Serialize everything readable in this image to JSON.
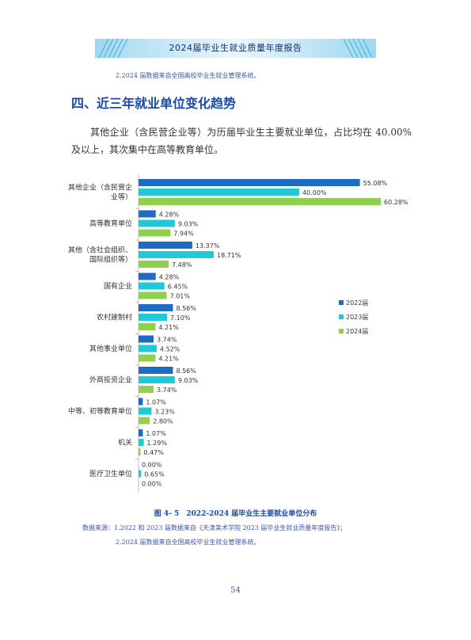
{
  "header": {
    "title": "2024届毕业生就业质量年度报告"
  },
  "top_note": "2.2024 届数据来自全国高校毕业生就业管理系统。",
  "section_title": "四、近三年就业单位变化趋势",
  "body_text": "其他企业（含民营企业等）为历届毕业生主要就业单位，占比均在 40.00%及以上，其次集中在高等教育单位。",
  "caption": "图 4- 5　2022-2024 届毕业生主要就业单位分布",
  "source_line1": "数据来源：1.2022 和 2023 届数据来自《天津美术学院 2023 届毕业生就业质量年度报告》；",
  "source_line2": "2.2024 届数据来自全国高校毕业生就业管理系统。",
  "page_number": "54",
  "colors": {
    "accent": "#1b4aa8",
    "s2022": "#1e6bc6",
    "s2023": "#1fc9d6",
    "s2024": "#8fd14f"
  },
  "chart_data": {
    "type": "bar",
    "orientation": "horizontal",
    "title": "",
    "xlabel": "",
    "ylabel": "",
    "xlim": [
      0,
      65
    ],
    "grid": false,
    "legend_position": "right",
    "categories": [
      [
        "其他企业（含民营企",
        "业等）"
      ],
      [
        "高等教育单位"
      ],
      [
        "其他（含社会组织、",
        "国际组织等）"
      ],
      [
        "国有企业"
      ],
      [
        "农村建制村"
      ],
      [
        "其他事业单位"
      ],
      [
        "外商投资企业"
      ],
      [
        "中等、初等教育单位"
      ],
      [
        "机关"
      ],
      [
        "医疗卫生单位"
      ]
    ],
    "series": [
      {
        "name": "2022届",
        "values": [
          55.08,
          4.28,
          13.37,
          4.28,
          8.56,
          3.74,
          8.56,
          1.07,
          1.07,
          0.0
        ],
        "labels": [
          "55.08%",
          "4.28%",
          "13.37%",
          "4.28%",
          "8.56%",
          "3.74%",
          "8.56%",
          "1.07%",
          "1.07%",
          "0.00%"
        ]
      },
      {
        "name": "2023届",
        "values": [
          40.0,
          9.03,
          18.71,
          6.45,
          7.1,
          4.52,
          9.03,
          3.23,
          1.29,
          0.65
        ],
        "labels": [
          "40.00%",
          "9.03%",
          "18.71%",
          "6.45%",
          "7.10%",
          "4.52%",
          "9.03%",
          "3.23%",
          "1.29%",
          "0.65%"
        ]
      },
      {
        "name": "2024届",
        "values": [
          60.28,
          7.94,
          7.48,
          7.01,
          4.21,
          4.21,
          3.74,
          2.8,
          0.47,
          0.0
        ],
        "labels": [
          "60.28%",
          "7.94%",
          "7.48%",
          "7.01%",
          "4.21%",
          "4.21%",
          "3.74%",
          "2.80%",
          "0.47%",
          "0.00%"
        ]
      }
    ]
  }
}
